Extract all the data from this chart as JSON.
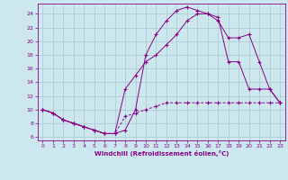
{
  "title": "",
  "xlabel": "Windchill (Refroidissement éolien,°C)",
  "bg_color": "#cce8ee",
  "grid_color": "#a8c8d0",
  "line_color": "#880088",
  "xlim": [
    -0.5,
    23.5
  ],
  "ylim": [
    5.5,
    25.5
  ],
  "yticks": [
    6,
    8,
    10,
    12,
    14,
    16,
    18,
    20,
    22,
    24
  ],
  "xticks": [
    0,
    1,
    2,
    3,
    4,
    5,
    6,
    7,
    8,
    9,
    10,
    11,
    12,
    13,
    14,
    15,
    16,
    17,
    18,
    19,
    20,
    21,
    22,
    23
  ],
  "curve1_x": [
    0,
    1,
    2,
    3,
    4,
    5,
    6,
    7,
    8,
    9,
    10,
    11,
    12,
    13,
    14,
    15,
    16,
    17,
    18,
    19,
    20,
    21,
    22,
    23
  ],
  "curve1_y": [
    10,
    9.5,
    8.5,
    8.0,
    7.5,
    7.0,
    6.5,
    6.5,
    7.0,
    10,
    18,
    21,
    23,
    24.5,
    25,
    24.5,
    24,
    23,
    20.5,
    20.5,
    21,
    17,
    13,
    11
  ],
  "curve2_x": [
    0,
    1,
    2,
    3,
    4,
    5,
    6,
    7,
    8,
    9,
    10,
    11,
    12,
    13,
    14,
    15,
    16,
    17,
    18,
    19,
    20,
    21,
    22,
    23
  ],
  "curve2_y": [
    10,
    9.5,
    8.5,
    8.0,
    7.5,
    7.0,
    6.5,
    6.5,
    9.0,
    9.5,
    10,
    10.5,
    11,
    11,
    11,
    11,
    11,
    11,
    11,
    11,
    11,
    11,
    11,
    11
  ],
  "curve3_x": [
    0,
    1,
    2,
    3,
    4,
    5,
    6,
    7,
    8,
    9,
    10,
    11,
    12,
    13,
    14,
    15,
    16,
    17,
    18,
    19,
    20,
    21,
    22,
    23
  ],
  "curve3_y": [
    10,
    9.5,
    8.5,
    8.0,
    7.5,
    7.0,
    6.5,
    6.5,
    13,
    15,
    17,
    18,
    19.5,
    21,
    23,
    24,
    24,
    23.5,
    17,
    17,
    13,
    13,
    13,
    11
  ]
}
